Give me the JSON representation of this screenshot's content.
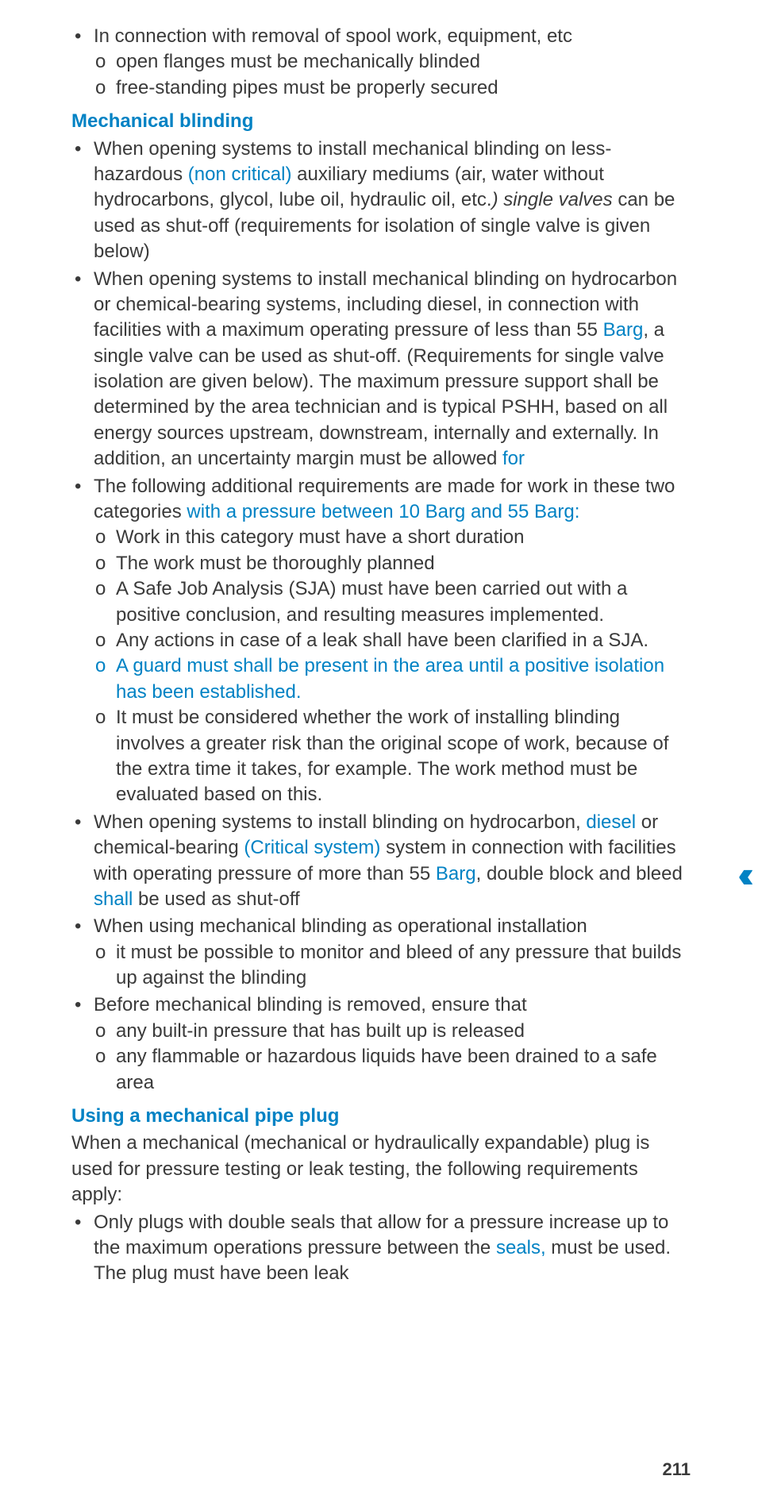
{
  "colors": {
    "text": "#3a3a3a",
    "accent": "#0082c4",
    "background": "#ffffff"
  },
  "typography": {
    "family": "Arial",
    "body_size_pt": 18,
    "heading_weight": "bold",
    "line_height": 1.35
  },
  "bullets": {
    "top": {
      "lead": "In connection with removal of spool work, equipment, etc",
      "subs": [
        "open flanges must be mechanically blinded",
        "free-standing pipes must be properly secured"
      ]
    }
  },
  "heading1": "Mechanical blinding",
  "mb_b1": {
    "p1": "When opening systems to install mechanical blinding on less-hazardous ",
    "p2": "(non critical)",
    "p3": " auxiliary mediums (air, water without hydrocarbons, glycol, lube oil, hydraulic oil, etc.",
    "p4": ") single valves",
    "p5": " can be used as shut-off (requirements for isolation of single valve is given below)"
  },
  "mb_b2": {
    "p1": "When opening systems to install mechanical blinding on hydrocarbon or chemical-bearing systems, including diesel, in connection with facilities with a maximum operating pressure of less than 55 ",
    "p2": "Barg",
    "p3": ", a single valve can be used as shut-off. (Requirements for single valve isolation are given below). The maximum pressure support shall be determined by the area technician and is typical PSHH, based on all energy sources upstream, downstream, internally and externally. In addition, an uncertainty margin must be allowed ",
    "p4": "for"
  },
  "mb_b3": {
    "lead_a": "The following additional requirements are made for work in these two categories ",
    "lead_b": "with a pressure between 10 Barg and 55 Barg:",
    "subs": {
      "s1": "Work in this category must have a short duration",
      "s2": "The work must be thoroughly planned",
      "s3": "A Safe Job Analysis (SJA) must have been carried out with a positive conclusion, and resulting measures implemented.",
      "s4": "Any actions in case of a leak shall have been clarified in a SJA.",
      "s5": "A guard must shall be present in the area until a positive isolation has been established.",
      "s6": "It must be considered whether the work of installing blinding involves a greater risk than the original scope of work, because of the extra time it takes, for example. The work method must be evaluated based on this."
    }
  },
  "mb_b4": {
    "p1": "When opening systems to install blinding on hydrocarbon, ",
    "p2": "diesel",
    "p3": " or chemical-bearing ",
    "p4": "(Critical system)",
    "p5": " system in connection with facilities with operating pressure of more than 55 ",
    "p6": "Barg",
    "p7": ", double block and bleed ",
    "p8": "shall",
    "p9": " be used as shut-off"
  },
  "mb_b5": {
    "lead": "When using mechanical blinding as operational installation",
    "sub1": "it must be possible to monitor and bleed of any pressure that builds up against the blinding"
  },
  "mb_b6": {
    "lead": "Before mechanical blinding is removed, ensure that",
    "sub1": "any built-in pressure that has built up is released",
    "sub2": "any flammable or hazardous liquids have been drained to a safe area"
  },
  "heading2": "Using a mechanical pipe plug",
  "plug_intro": "When a mechanical (mechanical or hydraulically expandable) plug is used for pressure testing or leak testing, the following requirements apply:",
  "plug_b1": {
    "p1": "Only plugs with double seals that allow for a pressure increase up to the maximum operations pressure between the ",
    "p2": "seals,",
    "p3": " must be used. The plug must have been leak"
  },
  "page_number": "211",
  "quote_symbol": "‹‹"
}
